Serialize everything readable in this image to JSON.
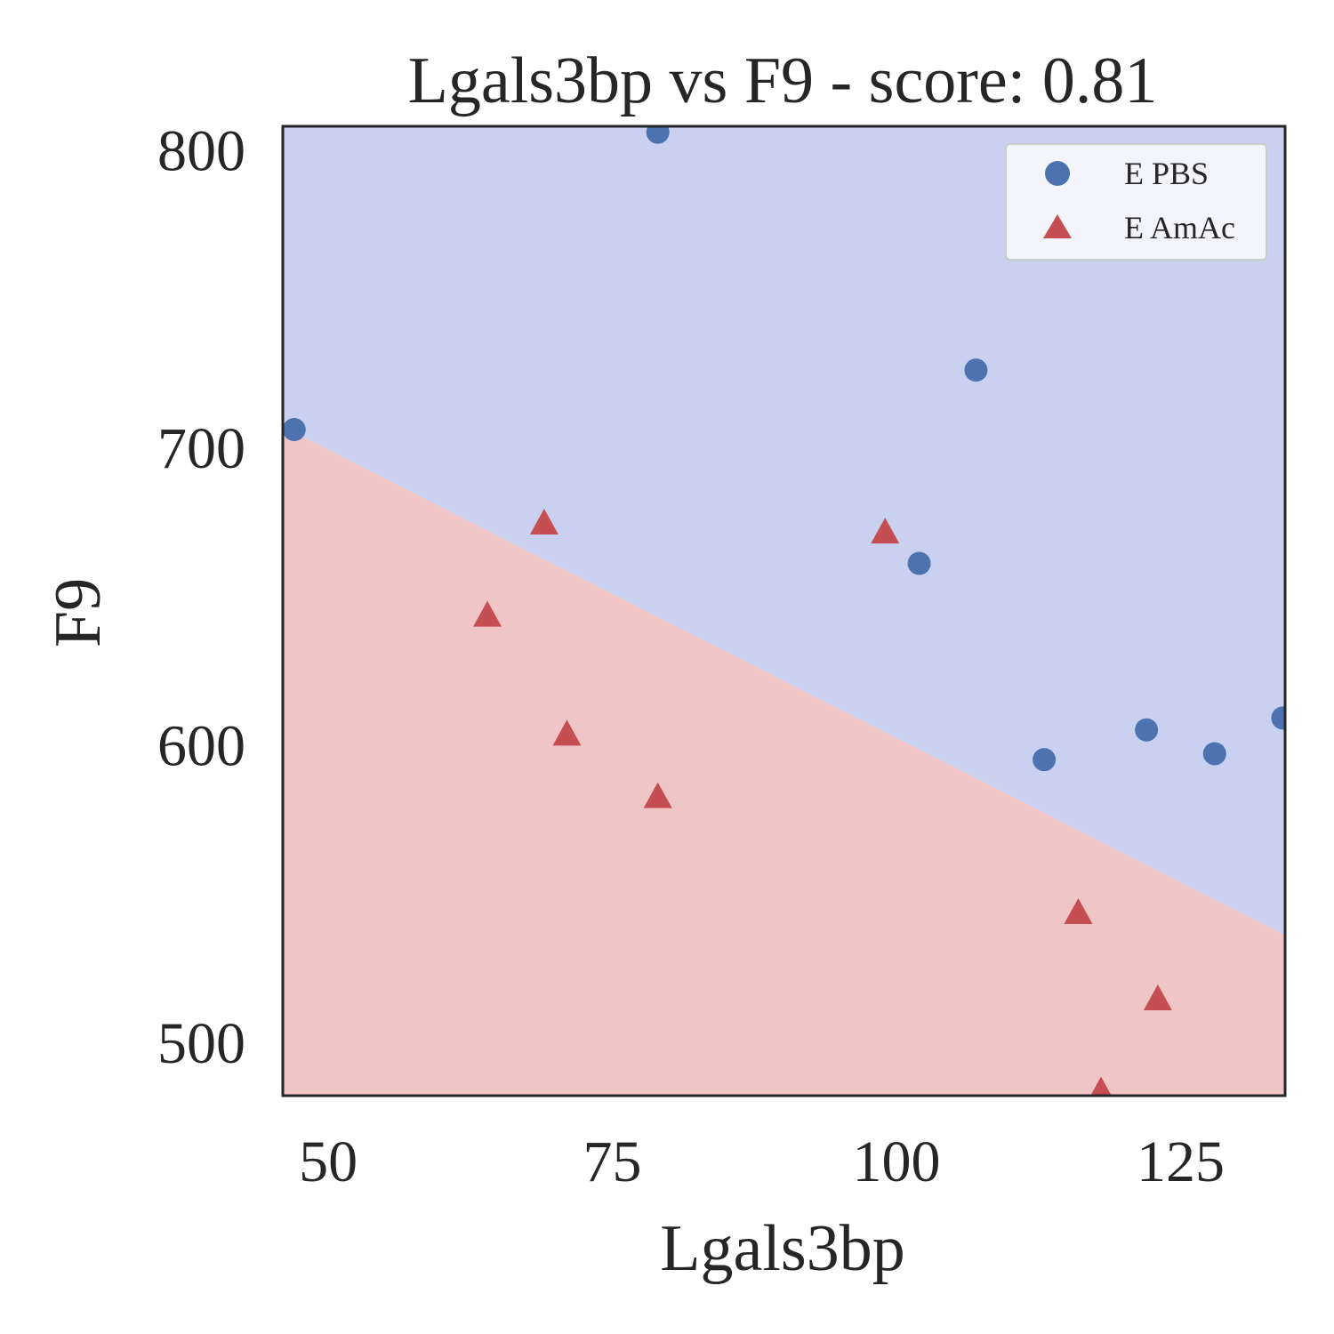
{
  "chart_data": {
    "type": "scatter",
    "title": "Lgals3bp vs F9 - score: 0.81",
    "xlabel": "Lgals3bp",
    "ylabel": "F9",
    "xlim": [
      46.0,
      134.2
    ],
    "ylim": [
      482.0,
      808.0
    ],
    "xticks": [
      50,
      75,
      100,
      125
    ],
    "yticks": [
      500,
      600,
      700,
      800
    ],
    "grid": false,
    "legend_position": "top-right",
    "background_regions": [
      {
        "class": "E PBS",
        "position": "above boundary",
        "color": "#c9d0f0"
      },
      {
        "class": "E AmAc",
        "position": "below boundary",
        "color": "#efc5c5"
      }
    ],
    "decision_boundary": {
      "points": [
        [
          47,
          705
        ],
        [
          134.2,
          536
        ]
      ]
    },
    "series": [
      {
        "name": "E PBS",
        "marker": "circle",
        "color": "#4c72b0",
        "points": [
          [
            47,
            706
          ],
          [
            79,
            806
          ],
          [
            107,
            726
          ],
          [
            102,
            661
          ],
          [
            113,
            595
          ],
          [
            122,
            605
          ],
          [
            128,
            597
          ],
          [
            134,
            609
          ]
        ]
      },
      {
        "name": "E AmAc",
        "marker": "triangle",
        "color": "#c44e52",
        "points": [
          [
            64,
            643
          ],
          [
            69,
            674
          ],
          [
            71,
            603
          ],
          [
            79,
            582
          ],
          [
            99,
            671
          ],
          [
            116,
            543
          ],
          [
            123,
            514
          ],
          [
            118,
            483
          ]
        ]
      }
    ]
  }
}
